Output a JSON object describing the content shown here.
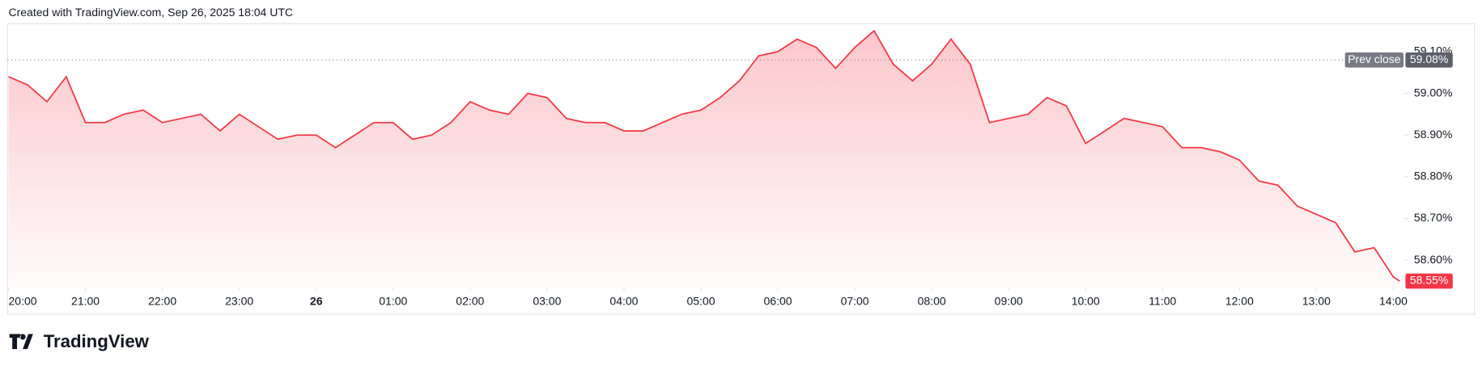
{
  "header": "Created with TradingView.com, Sep 26, 2025 18:04 UTC",
  "footer_logo": "TradingView",
  "chart_data": {
    "type": "area",
    "x": [
      "20:00",
      "20:15",
      "20:30",
      "20:45",
      "21:00",
      "21:15",
      "21:30",
      "21:45",
      "22:00",
      "22:15",
      "22:30",
      "22:45",
      "23:00",
      "23:15",
      "23:30",
      "23:45",
      "00:00",
      "00:15",
      "00:30",
      "00:45",
      "01:00",
      "01:15",
      "01:30",
      "01:45",
      "02:00",
      "02:15",
      "02:30",
      "02:45",
      "03:00",
      "03:15",
      "03:30",
      "03:45",
      "04:00",
      "04:15",
      "04:30",
      "04:45",
      "05:00",
      "05:15",
      "05:30",
      "05:45",
      "06:00",
      "06:15",
      "06:30",
      "06:45",
      "07:00",
      "07:15",
      "07:30",
      "07:45",
      "08:00",
      "08:15",
      "08:30",
      "08:45",
      "09:00",
      "09:15",
      "09:30",
      "09:45",
      "10:00",
      "10:15",
      "10:30",
      "10:45",
      "11:00",
      "11:15",
      "11:30",
      "11:45",
      "12:00",
      "12:15",
      "12:30",
      "12:45",
      "13:00",
      "13:15",
      "13:30",
      "13:45",
      "14:00",
      "14:05"
    ],
    "series": [
      {
        "color": "#f23645",
        "values": [
          59.04,
          59.02,
          58.98,
          59.04,
          58.93,
          58.93,
          58.95,
          58.96,
          58.93,
          58.94,
          58.95,
          58.91,
          58.95,
          58.92,
          58.89,
          58.9,
          58.9,
          58.87,
          58.9,
          58.93,
          58.93,
          58.89,
          58.9,
          58.93,
          58.98,
          58.96,
          58.95,
          59.0,
          58.99,
          58.94,
          58.93,
          58.93,
          58.91,
          58.91,
          58.93,
          58.95,
          58.96,
          58.99,
          59.03,
          59.09,
          59.1,
          59.13,
          59.11,
          59.06,
          59.11,
          59.15,
          59.07,
          59.03,
          59.07,
          59.13,
          59.07,
          58.93,
          58.94,
          58.95,
          58.99,
          58.97,
          58.88,
          58.91,
          58.94,
          58.93,
          58.92,
          58.87,
          58.87,
          58.86,
          58.84,
          58.79,
          58.78,
          58.73,
          58.71,
          58.69,
          58.62,
          58.63,
          58.56,
          58.55
        ]
      }
    ],
    "ylim": [
      58.534,
      59.167
    ],
    "yticks": [
      {
        "value": 58.6,
        "label": "58.60%"
      },
      {
        "value": 58.7,
        "label": "58.70%"
      },
      {
        "value": 58.8,
        "label": "58.80%"
      },
      {
        "value": 58.9,
        "label": "58.90%"
      },
      {
        "value": 59.0,
        "label": "59.00%"
      },
      {
        "value": 59.1,
        "label": "59.10%"
      }
    ],
    "xticks": [
      "20:00",
      "21:00",
      "22:00",
      "23:00",
      {
        "value": "00:00",
        "label": "26"
      },
      "01:00",
      "02:00",
      "03:00",
      "04:00",
      "05:00",
      "06:00",
      "07:00",
      "08:00",
      "09:00",
      "10:00",
      "11:00",
      "12:00",
      "13:00",
      "14:00"
    ],
    "prev_close": {
      "label": "Prev close",
      "value": 59.08,
      "value_label": "59.08%"
    },
    "last_price": {
      "value": 58.55,
      "label": "58.55%"
    }
  }
}
